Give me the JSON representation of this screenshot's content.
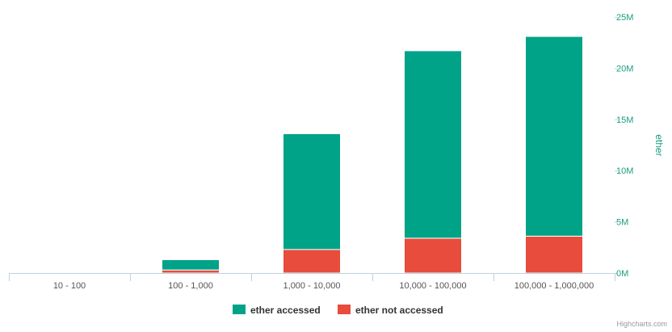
{
  "chart_data": {
    "type": "bar",
    "stacked": true,
    "categories": [
      "10 - 100",
      "100 - 1,000",
      "1,000 - 10,000",
      "10,000 - 100,000",
      "100,000 - 1,000,000"
    ],
    "series": [
      {
        "name": "ether not accessed",
        "color": "#e74c3c",
        "values": [
          0,
          300000,
          2300000,
          3400000,
          3600000
        ]
      },
      {
        "name": "ether accessed",
        "color": "#00a387",
        "values": [
          0,
          1000000,
          11300000,
          18300000,
          19500000
        ]
      }
    ],
    "legend_order": [
      1,
      0
    ],
    "ylabel": "ether",
    "yaxis_side": "right",
    "ylim": [
      0,
      25000000
    ],
    "yticks": [
      0,
      5000000,
      10000000,
      15000000,
      20000000,
      25000000
    ],
    "ytick_labels": [
      "0M",
      "5M",
      "10M",
      "15M",
      "20M",
      "25M"
    ],
    "grid": false,
    "legend_position": "bottom-center",
    "credits": "Highcharts.com"
  }
}
